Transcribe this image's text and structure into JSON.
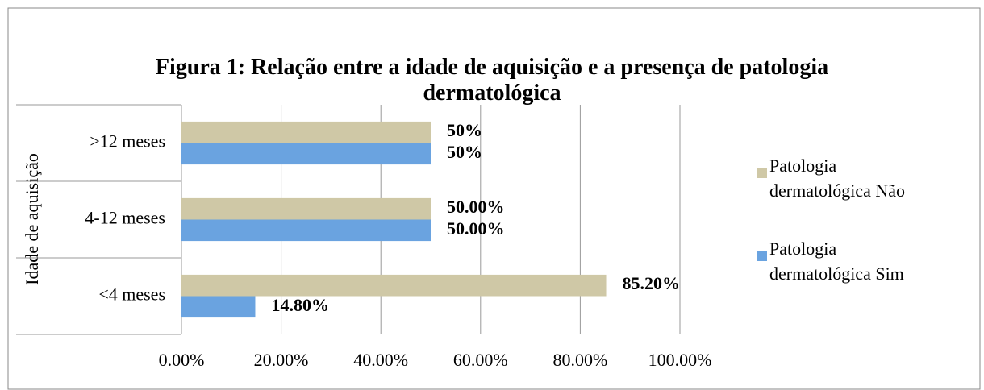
{
  "chart_data": {
    "type": "hbar",
    "title": "Figura 1: Relação entre a idade de aquisição e a presença de patologia dermatológica",
    "y_label": "Idade de aquisição",
    "categories": [
      "<4 meses",
      "4-12 meses",
      ">12 meses"
    ],
    "series": [
      {
        "name": "Patologia dermatológica Não",
        "color": "#cfc8a6",
        "values": [
          85.2,
          50,
          50
        ],
        "value_labels": [
          "85.20%",
          "50.00%",
          "50%"
        ]
      },
      {
        "name": "Patologia dermatológica Sim",
        "color": "#6aa3e0",
        "values": [
          14.8,
          50,
          50
        ],
        "value_labels": [
          "14.80%",
          "50.00%",
          "50%"
        ]
      }
    ],
    "xlim": [
      0,
      100
    ],
    "xticks": [
      {
        "value": 0,
        "label": "0.00%"
      },
      {
        "value": 20,
        "label": "20.00%"
      },
      {
        "value": 40,
        "label": "40.00%"
      },
      {
        "value": 60,
        "label": "60.00%"
      },
      {
        "value": 80,
        "label": "80.00%"
      },
      {
        "value": 100,
        "label": "100.00%"
      }
    ],
    "grid": true,
    "legend": "right"
  }
}
